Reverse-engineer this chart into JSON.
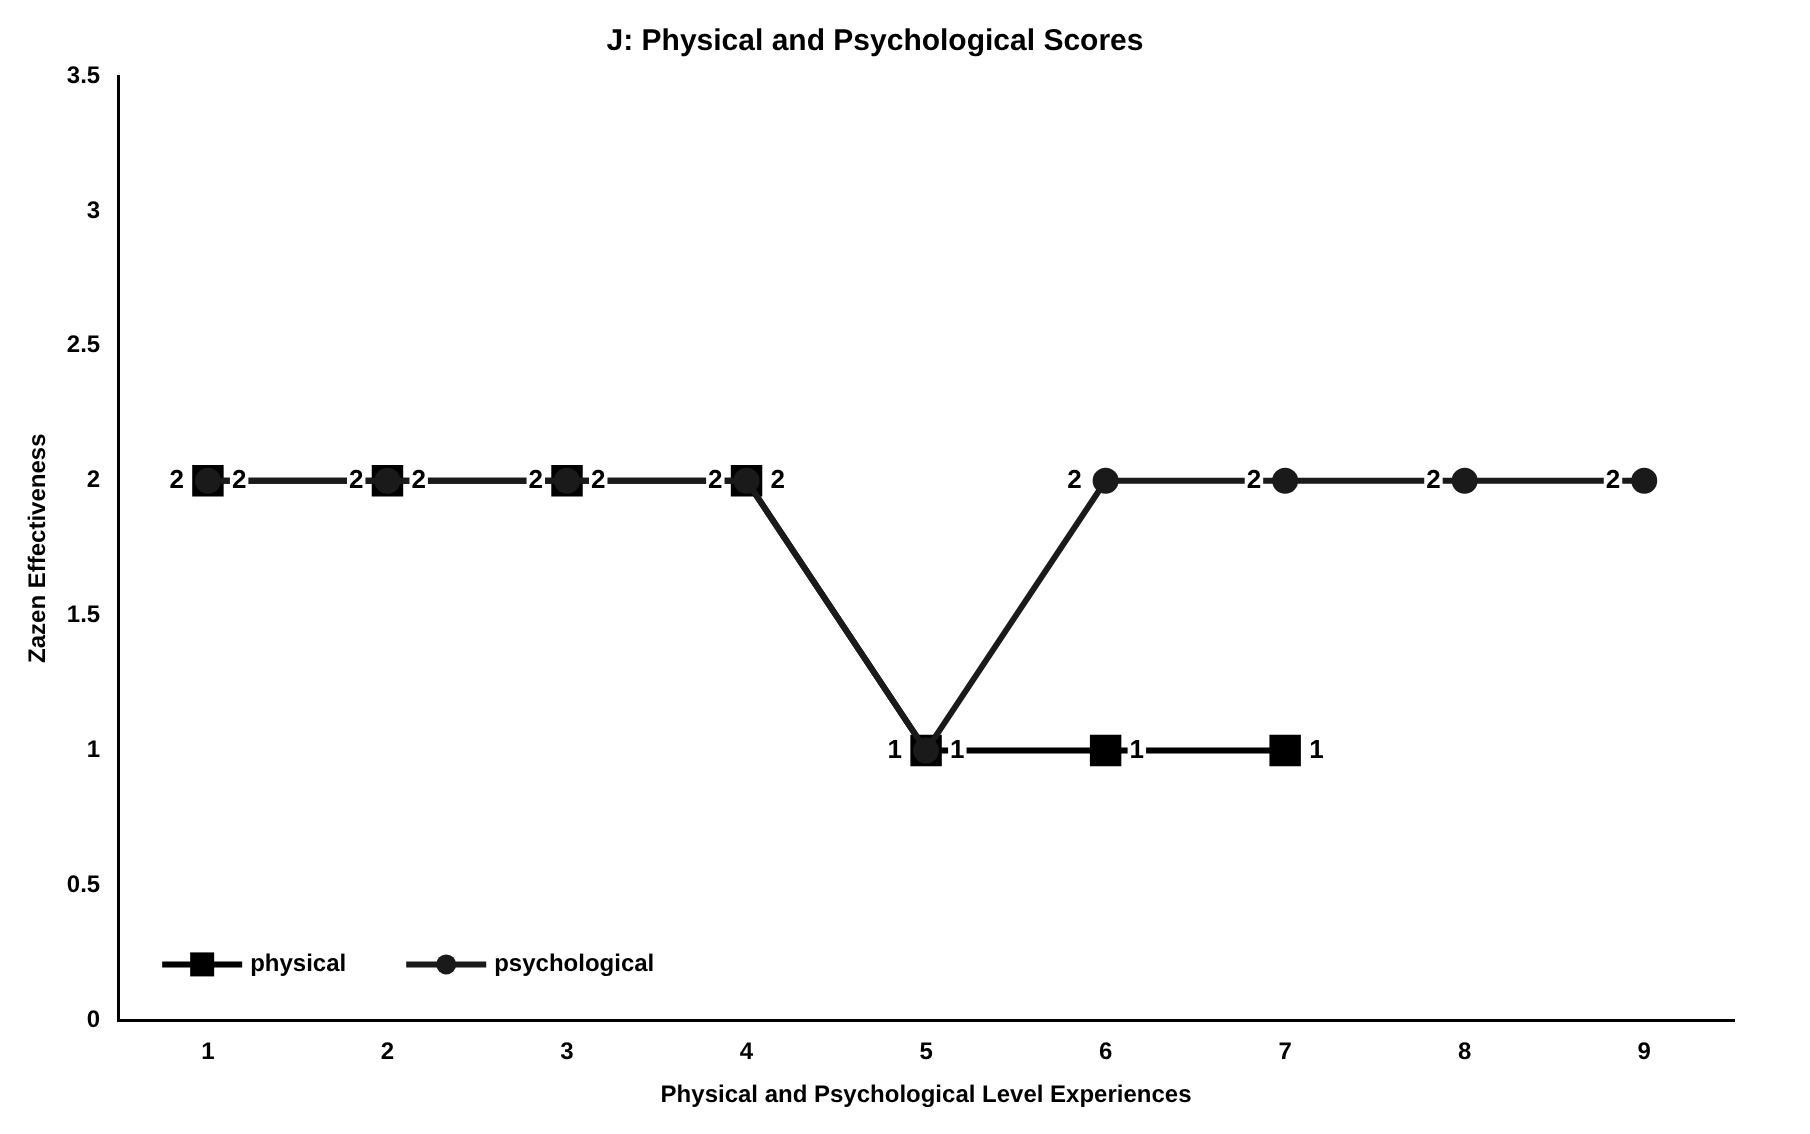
{
  "chart_data": {
    "type": "line",
    "title": "J: Physical and Psychological Scores",
    "xlabel": "Physical and Psychological Level Experiences",
    "ylabel": "Zazen Effectiveness",
    "categories": [
      "1",
      "2",
      "3",
      "4",
      "5",
      "6",
      "7",
      "8",
      "9"
    ],
    "series": [
      {
        "name": "physical",
        "color": "#000000",
        "marker": "square",
        "values": [
          2,
          2,
          2,
          2,
          1,
          1,
          1,
          null,
          null
        ]
      },
      {
        "name": "psychological",
        "color": "#1a1a1a",
        "marker": "circle",
        "values": [
          2,
          2,
          2,
          2,
          1,
          2,
          2,
          2,
          2
        ]
      }
    ],
    "ylim": [
      0,
      3.5
    ],
    "yticks": [
      0,
      0.5,
      1,
      1.5,
      2,
      2.5,
      3,
      3.5
    ],
    "grid": false,
    "legend": "bottom left",
    "data_labels": true,
    "line_style": "solid"
  }
}
